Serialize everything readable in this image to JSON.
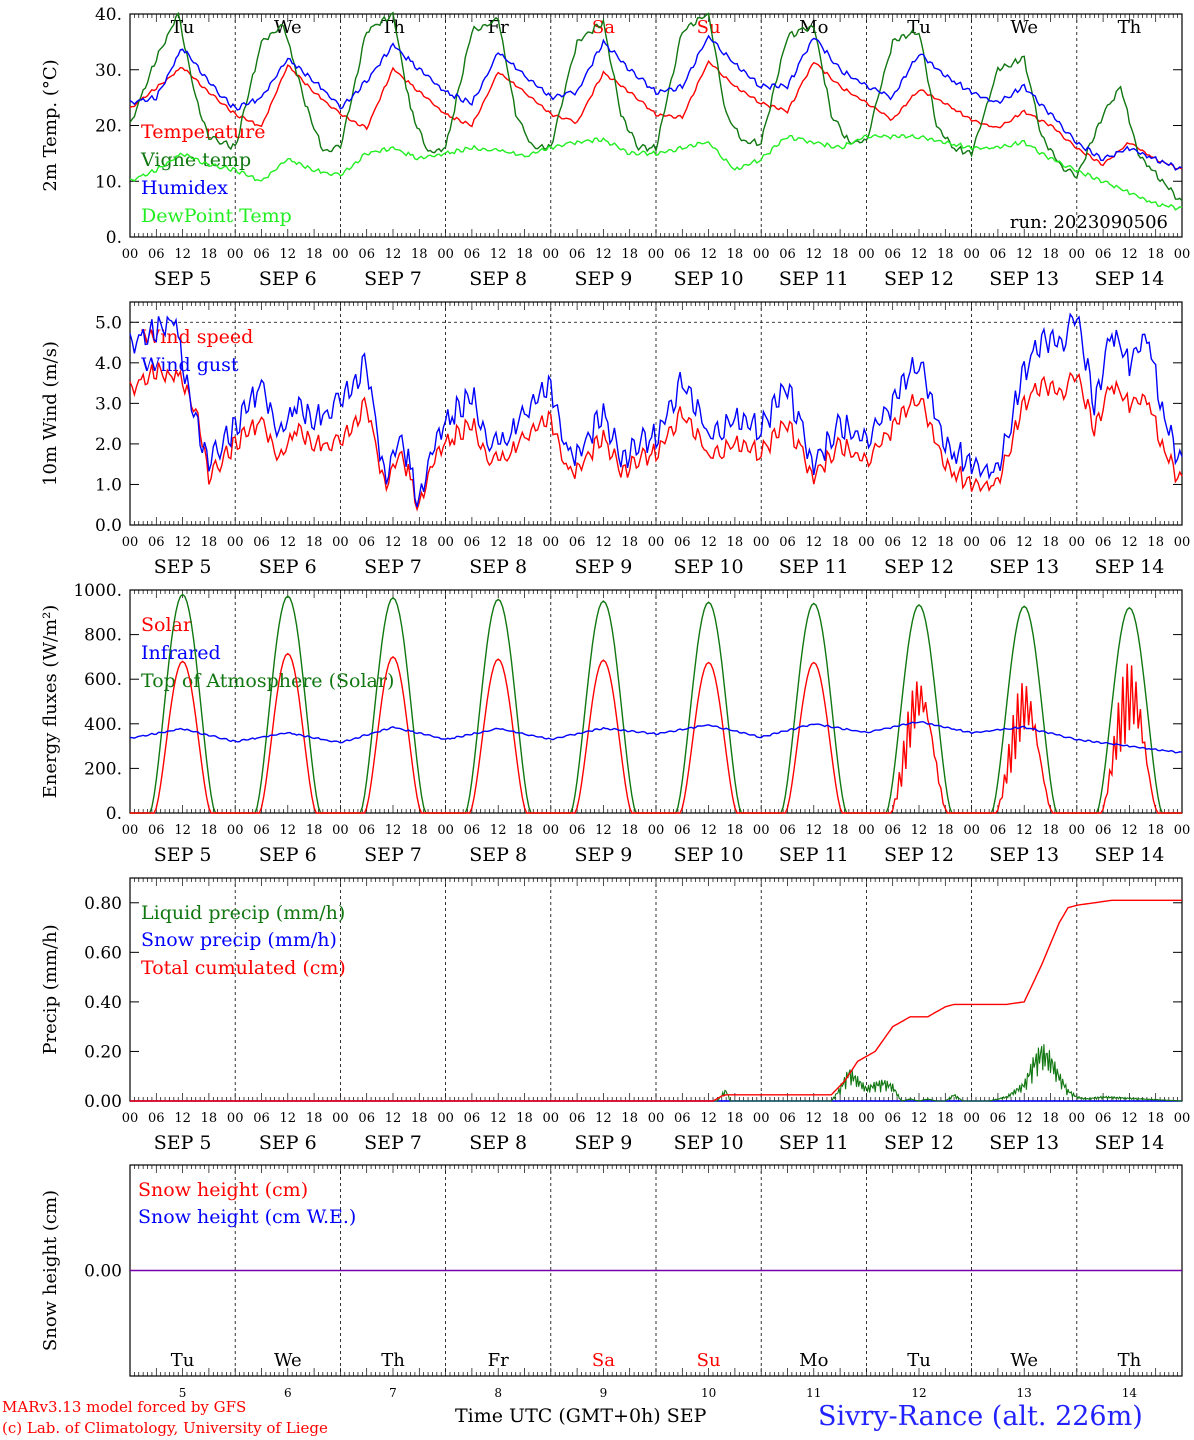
{
  "run_label": "run: 2023090506",
  "days": [
    "Tu",
    "We",
    "Th",
    "Fr",
    "Sa",
    "Su",
    "Mo",
    "Tu",
    "We",
    "Th"
  ],
  "weekend_days": [
    4,
    5
  ],
  "day_dates": [
    "SEP 5",
    "SEP 6",
    "SEP 7",
    "SEP 8",
    "SEP 9",
    "SEP 10",
    "SEP 11",
    "SEP 12",
    "SEP 13",
    "SEP 14"
  ],
  "day_numbers": [
    "5",
    "6",
    "7",
    "8",
    "9",
    "10",
    "11",
    "12",
    "13",
    "14"
  ],
  "hour_ticks": [
    "00",
    "06",
    "12",
    "18"
  ],
  "final_hour_tick": "00",
  "footer": {
    "credit_line1": "MARv3.13 model forced by GFS",
    "credit_line2": "(c) Lab. of Climatology, University of Liege",
    "x_title": "Time UTC (GMT+0h) SEP",
    "station": "Sivry-Rance (alt. 226m)"
  },
  "colors": {
    "red": "#ff0000",
    "blue": "#0000ff",
    "green": "#117711",
    "light_green": "#22ee22",
    "purple": "#7700aa"
  },
  "chart_data": [
    {
      "type": "line",
      "ylabel": "2m Temp. (°C)",
      "ylim": [
        0,
        40
      ],
      "yticks": [
        0,
        10,
        20,
        30,
        40
      ],
      "ytick_labels": [
        "0.",
        "10.",
        "20.",
        "30.",
        "40."
      ],
      "x_unit": "hours since 2023-09-05 00 UTC",
      "xlim": [
        0,
        240
      ],
      "grid_dashed_days": true,
      "series": [
        {
          "name": "Temperature",
          "color": "red",
          "x": [
            0,
            12,
            18,
            24,
            30,
            36,
            42,
            48,
            54,
            60,
            66,
            72,
            78,
            84,
            90,
            96,
            102,
            108,
            114,
            120,
            126,
            132,
            138,
            144,
            150,
            156,
            162,
            168,
            174,
            180,
            186,
            192,
            198,
            204,
            210,
            216,
            222,
            228,
            234,
            240
          ],
          "y": [
            23,
            30.5,
            26,
            22,
            19.8,
            30.8,
            26,
            22,
            19.5,
            30.2,
            26,
            22,
            20,
            29.5,
            26,
            22,
            20.5,
            29.5,
            26,
            22,
            21.5,
            31.5,
            27,
            24,
            22.5,
            31.5,
            27,
            24,
            21,
            26.5,
            24,
            21,
            19.5,
            22.5,
            20,
            16,
            13,
            17,
            14,
            12
          ]
        },
        {
          "name": "Vigne temp",
          "color": "green",
          "x": [
            0,
            6,
            11,
            15,
            18,
            24,
            30,
            35,
            40,
            44,
            48,
            54,
            60,
            64,
            68,
            72,
            78,
            84,
            88,
            92,
            96,
            102,
            108,
            112,
            116,
            120,
            126,
            132,
            136,
            140,
            144,
            150,
            156,
            160,
            164,
            168,
            174,
            180,
            184,
            188,
            192,
            198,
            204,
            208,
            212,
            216,
            222,
            226,
            230,
            240
          ],
          "y": [
            20,
            32,
            40,
            25,
            18,
            16,
            35,
            38,
            24,
            15.5,
            16,
            37,
            40,
            23,
            15,
            16,
            37,
            39,
            22,
            16,
            16,
            35,
            38.5,
            22,
            16,
            16,
            37,
            40,
            22,
            17,
            17,
            36,
            38,
            22,
            17,
            17,
            35,
            37,
            20,
            16,
            15,
            30,
            32,
            18,
            13,
            11,
            22,
            27,
            15,
            6
          ]
        },
        {
          "name": "Humidex",
          "color": "blue",
          "x": [
            0,
            6,
            12,
            16,
            20,
            24,
            30,
            36,
            42,
            46,
            48,
            54,
            60,
            66,
            72,
            78,
            84,
            90,
            96,
            102,
            108,
            114,
            120,
            126,
            132,
            138,
            144,
            150,
            156,
            162,
            168,
            174,
            180,
            186,
            192,
            198,
            204,
            210,
            216,
            222,
            228,
            234,
            240
          ],
          "y": [
            24,
            25,
            34,
            30,
            26,
            23,
            25,
            32,
            28,
            25,
            23,
            28,
            34.5,
            30,
            26,
            24,
            33,
            29,
            25,
            26,
            35,
            30,
            26,
            27,
            36,
            31,
            27,
            27,
            36,
            30,
            27,
            25,
            33,
            29,
            26,
            24,
            27,
            22,
            17,
            14,
            16,
            14,
            12
          ]
        },
        {
          "name": "DewPoint Temp",
          "color": "light_green",
          "x": [
            0,
            6,
            12,
            18,
            24,
            30,
            36,
            42,
            48,
            54,
            60,
            66,
            72,
            78,
            84,
            90,
            96,
            102,
            108,
            114,
            120,
            126,
            132,
            138,
            144,
            150,
            156,
            162,
            168,
            174,
            180,
            186,
            192,
            198,
            204,
            210,
            216,
            222,
            228,
            234,
            240
          ],
          "y": [
            10,
            12,
            15,
            13,
            12,
            10,
            14,
            12,
            11,
            15,
            16,
            14,
            15,
            16,
            15.5,
            14.5,
            16,
            17,
            17.5,
            15,
            15,
            16,
            17,
            12,
            14,
            18,
            17,
            16,
            18,
            18,
            18,
            17,
            16,
            16,
            17,
            14,
            12,
            10,
            8,
            6,
            5
          ]
        }
      ]
    },
    {
      "type": "line",
      "ylabel": "10m Wind (m/s)",
      "ylim": [
        0,
        5.5
      ],
      "yticks": [
        0,
        1,
        2,
        3,
        4,
        5
      ],
      "ytick_labels": [
        "0.0",
        "1.0",
        "2.0",
        "3.0",
        "4.0",
        "5.0"
      ],
      "reference_line": 5,
      "xlim": [
        0,
        240
      ],
      "series": [
        {
          "name": "Wind speed",
          "color": "red",
          "x": [
            0,
            6,
            12,
            16,
            18,
            24,
            30,
            34,
            38,
            42,
            48,
            54,
            58,
            62,
            66,
            70,
            74,
            78,
            82,
            86,
            90,
            96,
            100,
            104,
            108,
            112,
            116,
            120,
            126,
            132,
            138,
            144,
            150,
            156,
            162,
            168,
            174,
            180,
            186,
            192,
            198,
            204,
            208,
            212,
            216,
            220,
            224,
            228,
            232,
            236,
            240
          ],
          "y": [
            3.3,
            3.8,
            3.6,
            2.5,
            1.2,
            2.0,
            2.6,
            1.6,
            2.4,
            2.0,
            2.0,
            3.0,
            1.0,
            1.8,
            0.4,
            1.8,
            2.2,
            2.5,
            1.6,
            1.6,
            2.2,
            2.6,
            1.2,
            1.6,
            2.2,
            1.3,
            1.6,
            1.8,
            2.8,
            1.7,
            2.0,
            1.8,
            2.5,
            1.2,
            2.0,
            1.5,
            2.4,
            3.2,
            1.5,
            1.0,
            1.0,
            3.0,
            3.5,
            3.2,
            3.8,
            2.4,
            3.5,
            3.0,
            3.2,
            1.8,
            1.0
          ]
        },
        {
          "name": "Wind gust",
          "color": "blue",
          "x": [
            0,
            6,
            10,
            14,
            18,
            24,
            30,
            34,
            38,
            42,
            48,
            54,
            58,
            62,
            66,
            70,
            74,
            78,
            82,
            86,
            90,
            96,
            100,
            104,
            108,
            112,
            116,
            120,
            126,
            132,
            138,
            144,
            150,
            156,
            162,
            168,
            174,
            180,
            186,
            192,
            198,
            204,
            208,
            212,
            216,
            220,
            224,
            228,
            232,
            236,
            240
          ],
          "y": [
            4.4,
            4.8,
            5.1,
            3.0,
            1.6,
            2.4,
            3.5,
            2.2,
            3.0,
            2.6,
            3.0,
            4.0,
            1.2,
            2.2,
            0.5,
            2.2,
            2.8,
            3.2,
            2.0,
            2.0,
            2.8,
            3.4,
            1.6,
            2.0,
            2.8,
            1.6,
            2.0,
            2.2,
            3.6,
            2.2,
            2.6,
            2.4,
            3.4,
            1.5,
            2.5,
            2.0,
            3.0,
            4.1,
            2.0,
            1.5,
            1.3,
            3.8,
            4.6,
            4.4,
            5.3,
            3.0,
            4.8,
            4.0,
            4.8,
            2.6,
            1.4
          ]
        }
      ]
    },
    {
      "type": "line",
      "ylabel": "Energy fluxes (W/m²)",
      "ylim": [
        0,
        1000
      ],
      "yticks": [
        0,
        200,
        400,
        600,
        800,
        1000
      ],
      "ytick_labels": [
        "0.",
        "200.",
        "400.",
        "600.",
        "800.",
        "1000."
      ],
      "xlim": [
        0,
        240
      ],
      "series": [
        {
          "name": "Solar",
          "color": "red",
          "day_peaks": [
            680,
            715,
            700,
            690,
            685,
            675,
            675,
            625,
            600,
            680
          ],
          "sunrise_h": 5.5,
          "sunset_h": 18.5
        },
        {
          "name": "Infrared",
          "color": "blue",
          "x": [
            0,
            12,
            24,
            36,
            48,
            60,
            72,
            84,
            96,
            108,
            120,
            132,
            144,
            156,
            168,
            180,
            192,
            204,
            216,
            228,
            240
          ],
          "y": [
            335,
            378,
            320,
            360,
            315,
            385,
            330,
            378,
            330,
            380,
            355,
            395,
            340,
            400,
            360,
            410,
            360,
            385,
            330,
            300,
            270
          ]
        },
        {
          "name": "Top of Atmosphere (Solar)",
          "color": "green",
          "day_peaks": [
            980,
            972,
            965,
            958,
            950,
            945,
            940,
            933,
            927,
            920
          ],
          "sunrise_h": 4.5,
          "sunset_h": 19.5
        }
      ]
    },
    {
      "type": "line",
      "ylabel": "Precip (mm/h)",
      "ylim": [
        0,
        0.9
      ],
      "yticks": [
        0,
        0.2,
        0.4,
        0.6,
        0.8
      ],
      "ytick_labels": [
        "0.00",
        "0.20",
        "0.40",
        "0.60",
        "0.80"
      ],
      "xlim": [
        0,
        240
      ],
      "series": [
        {
          "name": "Liquid precip (mm/h)",
          "color": "green",
          "x": [
            0,
            134,
            135,
            136,
            137,
            160,
            162,
            164,
            166,
            168,
            170,
            172,
            174,
            176,
            178,
            180,
            182,
            184,
            186,
            188,
            190,
            196,
            200,
            204,
            206,
            208,
            210,
            212,
            214,
            216,
            218,
            222,
            240
          ],
          "y": [
            0,
            0,
            0.03,
            0.05,
            0,
            0,
            0.06,
            0.14,
            0.1,
            0.06,
            0.08,
            0.09,
            0.07,
            0,
            0.01,
            0,
            0.01,
            0,
            0,
            0.03,
            0,
            0,
            0.02,
            0.08,
            0.18,
            0.24,
            0.2,
            0.12,
            0.05,
            0.02,
            0.01,
            0.02,
            0
          ]
        },
        {
          "name": "Snow precip (mm/h)",
          "color": "blue",
          "x": [
            0,
            240
          ],
          "y": [
            0,
            0
          ]
        },
        {
          "name": "Total cumulated (cm)",
          "color": "red",
          "x": [
            0,
            133,
            134,
            135,
            136,
            160,
            163,
            166,
            168,
            170,
            172,
            174,
            178,
            182,
            184,
            186,
            188,
            190,
            196,
            200,
            204,
            208,
            212,
            214,
            216,
            220,
            224,
            240
          ],
          "y": [
            0,
            0,
            0.01,
            0.02,
            0.025,
            0.025,
            0.08,
            0.16,
            0.18,
            0.2,
            0.25,
            0.3,
            0.34,
            0.34,
            0.36,
            0.38,
            0.39,
            0.39,
            0.39,
            0.39,
            0.4,
            0.55,
            0.72,
            0.78,
            0.79,
            0.8,
            0.81,
            0.81
          ]
        }
      ]
    },
    {
      "type": "line",
      "ylabel": "Snow height (cm)",
      "ylim": [
        -1,
        1
      ],
      "yticks": [
        0
      ],
      "ytick_labels": [
        "0.00"
      ],
      "xlim": [
        0,
        240
      ],
      "series": [
        {
          "name": "Snow height (cm)",
          "color": "red",
          "x": [
            0,
            240
          ],
          "y": [
            0,
            0
          ]
        },
        {
          "name": "Snow height (cm W.E.)",
          "color": "blue",
          "x": [
            0,
            240
          ],
          "y": [
            0,
            0
          ]
        }
      ]
    }
  ]
}
